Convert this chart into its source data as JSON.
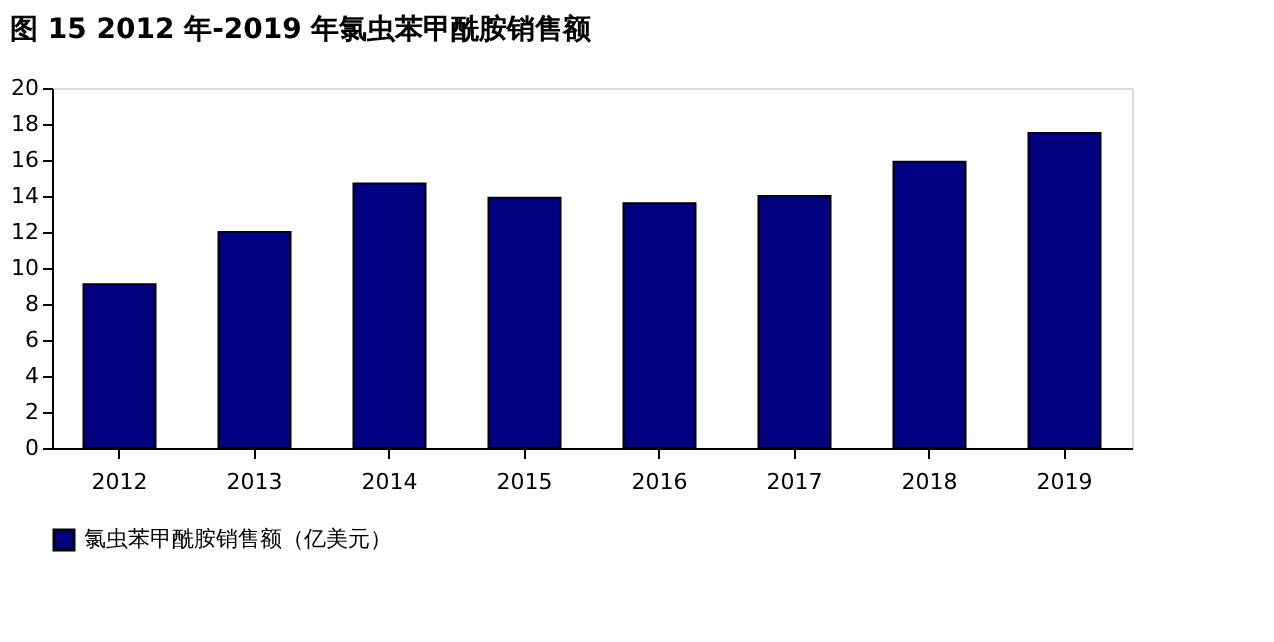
{
  "chart_data": {
    "type": "bar",
    "title": "图 15 2012 年-2019 年氯虫苯甲酰胺销售额",
    "categories": [
      "2012",
      "2013",
      "2014",
      "2015",
      "2016",
      "2017",
      "2018",
      "2019"
    ],
    "series": [
      {
        "name": "氯虫苯甲酰胺销售额（亿美元）",
        "color": "#000080",
        "values": [
          9.1,
          12.0,
          14.7,
          13.9,
          13.6,
          14.0,
          15.9,
          17.5
        ]
      }
    ],
    "ylim": [
      0,
      20
    ],
    "yticks": [
      0,
      2,
      4,
      6,
      8,
      10,
      12,
      14,
      16,
      18,
      20
    ],
    "grid": false,
    "legend": "bottom"
  }
}
